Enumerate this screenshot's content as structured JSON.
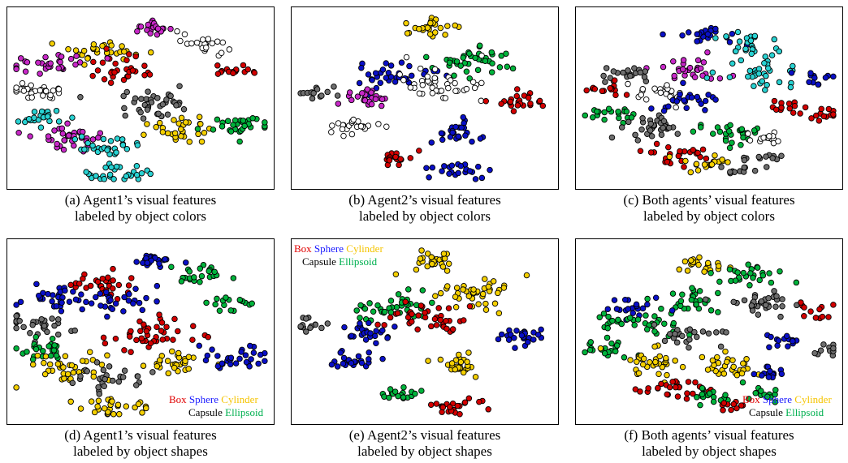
{
  "panels": [
    {
      "id": "a",
      "caption_line1": "(a) Agent1’s visual features",
      "caption_line2": "labeled by object colors"
    },
    {
      "id": "b",
      "caption_line1": "(b) Agent2’s visual features",
      "caption_line2": "labeled by object colors"
    },
    {
      "id": "c",
      "caption_line1": "(c) Both agents’ visual features",
      "caption_line2": "labeled by object colors"
    },
    {
      "id": "d",
      "caption_line1": "(d) Agent1’s visual features",
      "caption_line2": "labeled by object shapes"
    },
    {
      "id": "e",
      "caption_line1": "(e) Agent2’s visual features",
      "caption_line2": "labeled by object shapes"
    },
    {
      "id": "f",
      "caption_line1": "(f) Both agents’ visual features",
      "caption_line2": "labeled by object shapes"
    }
  ],
  "legend": {
    "box": "Box",
    "sphere": "Sphere",
    "cylinder": "Cylinder",
    "capsule": "Capsule",
    "ellipsoid": "Ellipsoid"
  },
  "colors": {
    "red": "#d40000",
    "blue": "#0a10c8",
    "yellow": "#f5d000",
    "green": "#00b43c",
    "cyan": "#28d2d2",
    "magenta": "#c828c8",
    "white": "#ffffff",
    "gray": "#6e6e6e"
  },
  "chart_data": [
    {
      "type": "scatter",
      "xlim": [
        0,
        1
      ],
      "ylim": [
        0,
        1
      ],
      "grid": false,
      "color_by": "object colors",
      "clusters": [
        {
          "cx": 0.55,
          "cy": 0.09,
          "spread": 0.03,
          "n": 22,
          "color": "magenta"
        },
        {
          "cx": 0.74,
          "cy": 0.18,
          "spread": 0.04,
          "n": 22,
          "color": "white"
        },
        {
          "cx": 0.36,
          "cy": 0.22,
          "spread": 0.05,
          "n": 30,
          "color": "yellow"
        },
        {
          "cx": 0.43,
          "cy": 0.33,
          "spread": 0.06,
          "n": 30,
          "color": "red"
        },
        {
          "cx": 0.16,
          "cy": 0.3,
          "spread": 0.05,
          "n": 30,
          "color": "magenta"
        },
        {
          "cx": 0.08,
          "cy": 0.46,
          "spread": 0.05,
          "n": 30,
          "color": "white"
        },
        {
          "cx": 0.86,
          "cy": 0.34,
          "spread": 0.03,
          "n": 16,
          "color": "red"
        },
        {
          "cx": 0.55,
          "cy": 0.52,
          "spread": 0.07,
          "n": 40,
          "color": "gray"
        },
        {
          "cx": 0.66,
          "cy": 0.68,
          "spread": 0.05,
          "n": 30,
          "color": "yellow"
        },
        {
          "cx": 0.88,
          "cy": 0.66,
          "spread": 0.05,
          "n": 30,
          "color": "green"
        },
        {
          "cx": 0.1,
          "cy": 0.6,
          "spread": 0.04,
          "n": 24,
          "color": "cyan"
        },
        {
          "cx": 0.22,
          "cy": 0.72,
          "spread": 0.06,
          "n": 36,
          "color": "magenta"
        },
        {
          "cx": 0.36,
          "cy": 0.78,
          "spread": 0.05,
          "n": 28,
          "color": "cyan"
        },
        {
          "cx": 0.4,
          "cy": 0.94,
          "spread": 0.05,
          "n": 28,
          "color": "cyan"
        }
      ]
    },
    {
      "type": "scatter",
      "xlim": [
        0,
        1
      ],
      "ylim": [
        0,
        1
      ],
      "grid": false,
      "color_by": "object colors",
      "clusters": [
        {
          "cx": 0.52,
          "cy": 0.08,
          "spread": 0.04,
          "n": 26,
          "color": "yellow"
        },
        {
          "cx": 0.7,
          "cy": 0.28,
          "spread": 0.06,
          "n": 40,
          "color": "green"
        },
        {
          "cx": 0.37,
          "cy": 0.37,
          "spread": 0.06,
          "n": 36,
          "color": "blue"
        },
        {
          "cx": 0.55,
          "cy": 0.42,
          "spread": 0.07,
          "n": 40,
          "color": "white"
        },
        {
          "cx": 0.27,
          "cy": 0.5,
          "spread": 0.04,
          "n": 24,
          "color": "magenta"
        },
        {
          "cx": 0.07,
          "cy": 0.46,
          "spread": 0.03,
          "n": 14,
          "color": "gray"
        },
        {
          "cx": 0.88,
          "cy": 0.52,
          "spread": 0.04,
          "n": 24,
          "color": "red"
        },
        {
          "cx": 0.22,
          "cy": 0.68,
          "spread": 0.04,
          "n": 22,
          "color": "white"
        },
        {
          "cx": 0.62,
          "cy": 0.7,
          "spread": 0.04,
          "n": 26,
          "color": "blue"
        },
        {
          "cx": 0.4,
          "cy": 0.86,
          "spread": 0.03,
          "n": 18,
          "color": "red"
        },
        {
          "cx": 0.63,
          "cy": 0.94,
          "spread": 0.04,
          "n": 22,
          "color": "blue"
        }
      ]
    },
    {
      "type": "scatter",
      "xlim": [
        0,
        1
      ],
      "ylim": [
        0,
        1
      ],
      "grid": false,
      "color_by": "object colors",
      "clusters": [
        {
          "cx": 0.48,
          "cy": 0.12,
          "spread": 0.04,
          "n": 22,
          "color": "blue"
        },
        {
          "cx": 0.68,
          "cy": 0.18,
          "spread": 0.05,
          "n": 26,
          "color": "cyan"
        },
        {
          "cx": 0.42,
          "cy": 0.32,
          "spread": 0.05,
          "n": 28,
          "color": "magenta"
        },
        {
          "cx": 0.7,
          "cy": 0.36,
          "spread": 0.06,
          "n": 32,
          "color": "cyan"
        },
        {
          "cx": 0.2,
          "cy": 0.36,
          "spread": 0.04,
          "n": 20,
          "color": "gray"
        },
        {
          "cx": 0.1,
          "cy": 0.44,
          "spread": 0.03,
          "n": 14,
          "color": "red"
        },
        {
          "cx": 0.92,
          "cy": 0.38,
          "spread": 0.03,
          "n": 12,
          "color": "blue"
        },
        {
          "cx": 0.3,
          "cy": 0.46,
          "spread": 0.04,
          "n": 20,
          "color": "white"
        },
        {
          "cx": 0.42,
          "cy": 0.52,
          "spread": 0.05,
          "n": 24,
          "color": "blue"
        },
        {
          "cx": 0.8,
          "cy": 0.55,
          "spread": 0.03,
          "n": 14,
          "color": "red"
        },
        {
          "cx": 0.1,
          "cy": 0.6,
          "spread": 0.04,
          "n": 20,
          "color": "green"
        },
        {
          "cx": 0.26,
          "cy": 0.68,
          "spread": 0.06,
          "n": 34,
          "color": "gray"
        },
        {
          "cx": 0.58,
          "cy": 0.7,
          "spread": 0.05,
          "n": 28,
          "color": "green"
        },
        {
          "cx": 0.36,
          "cy": 0.82,
          "spread": 0.05,
          "n": 26,
          "color": "red"
        },
        {
          "cx": 0.5,
          "cy": 0.88,
          "spread": 0.04,
          "n": 18,
          "color": "yellow"
        },
        {
          "cx": 0.74,
          "cy": 0.74,
          "spread": 0.03,
          "n": 14,
          "color": "white"
        },
        {
          "cx": 0.72,
          "cy": 0.86,
          "spread": 0.03,
          "n": 12,
          "color": "gray"
        },
        {
          "cx": 0.96,
          "cy": 0.6,
          "spread": 0.03,
          "n": 12,
          "color": "red"
        },
        {
          "cx": 0.6,
          "cy": 0.93,
          "spread": 0.02,
          "n": 10,
          "color": "gray"
        }
      ]
    },
    {
      "type": "scatter",
      "xlim": [
        0,
        1
      ],
      "ylim": [
        0,
        1
      ],
      "grid": false,
      "color_by": "object shapes",
      "clusters": [
        {
          "cx": 0.55,
          "cy": 0.09,
          "spread": 0.03,
          "n": 22,
          "color": "blue"
        },
        {
          "cx": 0.74,
          "cy": 0.18,
          "spread": 0.04,
          "n": 22,
          "color": "green"
        },
        {
          "cx": 0.36,
          "cy": 0.22,
          "spread": 0.05,
          "n": 30,
          "color": "red"
        },
        {
          "cx": 0.43,
          "cy": 0.33,
          "spread": 0.06,
          "n": 30,
          "color": "blue"
        },
        {
          "cx": 0.16,
          "cy": 0.3,
          "spread": 0.05,
          "n": 30,
          "color": "blue"
        },
        {
          "cx": 0.08,
          "cy": 0.46,
          "spread": 0.05,
          "n": 30,
          "color": "gray"
        },
        {
          "cx": 0.86,
          "cy": 0.34,
          "spread": 0.03,
          "n": 16,
          "color": "green"
        },
        {
          "cx": 0.55,
          "cy": 0.52,
          "spread": 0.07,
          "n": 40,
          "color": "red"
        },
        {
          "cx": 0.66,
          "cy": 0.68,
          "spread": 0.05,
          "n": 30,
          "color": "yellow"
        },
        {
          "cx": 0.88,
          "cy": 0.66,
          "spread": 0.05,
          "n": 30,
          "color": "blue"
        },
        {
          "cx": 0.1,
          "cy": 0.6,
          "spread": 0.04,
          "n": 24,
          "color": "green"
        },
        {
          "cx": 0.22,
          "cy": 0.72,
          "spread": 0.06,
          "n": 36,
          "color": "yellow"
        },
        {
          "cx": 0.36,
          "cy": 0.78,
          "spread": 0.05,
          "n": 28,
          "color": "gray"
        },
        {
          "cx": 0.4,
          "cy": 0.94,
          "spread": 0.05,
          "n": 28,
          "color": "yellow"
        }
      ]
    },
    {
      "type": "scatter",
      "xlim": [
        0,
        1
      ],
      "ylim": [
        0,
        1
      ],
      "grid": false,
      "color_by": "object shapes",
      "clusters": [
        {
          "cx": 0.52,
          "cy": 0.08,
          "spread": 0.04,
          "n": 26,
          "color": "yellow"
        },
        {
          "cx": 0.7,
          "cy": 0.28,
          "spread": 0.06,
          "n": 40,
          "color": "yellow"
        },
        {
          "cx": 0.37,
          "cy": 0.37,
          "spread": 0.06,
          "n": 36,
          "color": "green"
        },
        {
          "cx": 0.55,
          "cy": 0.42,
          "spread": 0.07,
          "n": 40,
          "color": "red"
        },
        {
          "cx": 0.27,
          "cy": 0.5,
          "spread": 0.04,
          "n": 24,
          "color": "blue"
        },
        {
          "cx": 0.07,
          "cy": 0.46,
          "spread": 0.03,
          "n": 14,
          "color": "gray"
        },
        {
          "cx": 0.88,
          "cy": 0.52,
          "spread": 0.04,
          "n": 24,
          "color": "blue"
        },
        {
          "cx": 0.22,
          "cy": 0.68,
          "spread": 0.04,
          "n": 22,
          "color": "blue"
        },
        {
          "cx": 0.62,
          "cy": 0.7,
          "spread": 0.04,
          "n": 26,
          "color": "yellow"
        },
        {
          "cx": 0.4,
          "cy": 0.86,
          "spread": 0.03,
          "n": 18,
          "color": "green"
        },
        {
          "cx": 0.63,
          "cy": 0.94,
          "spread": 0.04,
          "n": 22,
          "color": "red"
        }
      ]
    },
    {
      "type": "scatter",
      "xlim": [
        0,
        1
      ],
      "ylim": [
        0,
        1
      ],
      "grid": false,
      "color_by": "object shapes",
      "clusters": [
        {
          "cx": 0.48,
          "cy": 0.12,
          "spread": 0.04,
          "n": 22,
          "color": "yellow"
        },
        {
          "cx": 0.68,
          "cy": 0.18,
          "spread": 0.05,
          "n": 26,
          "color": "green"
        },
        {
          "cx": 0.42,
          "cy": 0.32,
          "spread": 0.05,
          "n": 28,
          "color": "green"
        },
        {
          "cx": 0.7,
          "cy": 0.36,
          "spread": 0.06,
          "n": 32,
          "color": "gray"
        },
        {
          "cx": 0.2,
          "cy": 0.36,
          "spread": 0.04,
          "n": 20,
          "color": "blue"
        },
        {
          "cx": 0.1,
          "cy": 0.44,
          "spread": 0.03,
          "n": 14,
          "color": "green"
        },
        {
          "cx": 0.92,
          "cy": 0.38,
          "spread": 0.03,
          "n": 12,
          "color": "red"
        },
        {
          "cx": 0.3,
          "cy": 0.46,
          "spread": 0.04,
          "n": 20,
          "color": "green"
        },
        {
          "cx": 0.42,
          "cy": 0.52,
          "spread": 0.05,
          "n": 24,
          "color": "gray"
        },
        {
          "cx": 0.8,
          "cy": 0.55,
          "spread": 0.03,
          "n": 14,
          "color": "blue"
        },
        {
          "cx": 0.1,
          "cy": 0.6,
          "spread": 0.04,
          "n": 20,
          "color": "green"
        },
        {
          "cx": 0.26,
          "cy": 0.68,
          "spread": 0.06,
          "n": 34,
          "color": "yellow"
        },
        {
          "cx": 0.58,
          "cy": 0.7,
          "spread": 0.05,
          "n": 28,
          "color": "yellow"
        },
        {
          "cx": 0.36,
          "cy": 0.82,
          "spread": 0.05,
          "n": 26,
          "color": "red"
        },
        {
          "cx": 0.5,
          "cy": 0.88,
          "spread": 0.04,
          "n": 18,
          "color": "green"
        },
        {
          "cx": 0.74,
          "cy": 0.74,
          "spread": 0.03,
          "n": 14,
          "color": "blue"
        },
        {
          "cx": 0.72,
          "cy": 0.86,
          "spread": 0.03,
          "n": 12,
          "color": "green"
        },
        {
          "cx": 0.96,
          "cy": 0.6,
          "spread": 0.03,
          "n": 12,
          "color": "gray"
        },
        {
          "cx": 0.6,
          "cy": 0.93,
          "spread": 0.02,
          "n": 10,
          "color": "red"
        }
      ]
    }
  ]
}
